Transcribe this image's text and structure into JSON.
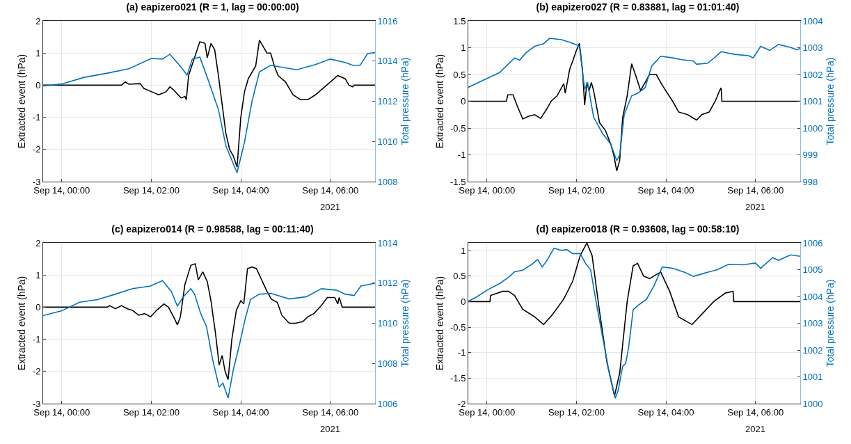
{
  "chart_data": [
    {
      "type": "line",
      "title": "(a) eapizero021 (R = 1, lag = 00:00:00)",
      "ylabel": "Extracted event (hPa)",
      "y2label": "Total pressure (hPa)",
      "grid": true,
      "annotations": [
        "2021"
      ],
      "xlim": [
        "2021-09-13T23:35",
        "2021-09-14T07:00"
      ],
      "xticks": [
        {
          "value": "2021-09-14T00:00",
          "label": "Sep 14, 00:00"
        },
        {
          "value": "2021-09-14T02:00",
          "label": "Sep 14, 02:00"
        },
        {
          "value": "2021-09-14T04:00",
          "label": "Sep 14, 04:00"
        },
        {
          "value": "2021-09-14T06:00",
          "label": "Sep 14, 06:00"
        }
      ],
      "ylim": [
        -3,
        2
      ],
      "yticks": [
        -3,
        -2,
        -1,
        0,
        1,
        2
      ],
      "y2lim": [
        1008,
        1016
      ],
      "y2ticks": [
        1008,
        1010,
        1012,
        1014,
        1016
      ],
      "series": [
        {
          "color": "#000000",
          "x": [
            "2021-09-13T23:35",
            "2021-09-14T01:20",
            "2021-09-14T01:25",
            "2021-09-14T01:30",
            "2021-09-14T01:45",
            "2021-09-14T01:50",
            "2021-09-14T02:00",
            "2021-09-14T02:10",
            "2021-09-14T02:20",
            "2021-09-14T02:25",
            "2021-09-14T02:30",
            "2021-09-14T02:40",
            "2021-09-14T02:45",
            "2021-09-14T02:47",
            "2021-09-14T02:50",
            "2021-09-14T03:00",
            "2021-09-14T03:05",
            "2021-09-14T03:12",
            "2021-09-14T03:15",
            "2021-09-14T03:20",
            "2021-09-14T03:25",
            "2021-09-14T03:30",
            "2021-09-14T03:40",
            "2021-09-14T03:45",
            "2021-09-14T03:50",
            "2021-09-14T03:55",
            "2021-09-14T04:00",
            "2021-09-14T04:05",
            "2021-09-14T04:10",
            "2021-09-14T04:20",
            "2021-09-14T04:25",
            "2021-09-14T04:30",
            "2021-09-14T04:35",
            "2021-09-14T04:40",
            "2021-09-14T04:45",
            "2021-09-14T04:50",
            "2021-09-14T05:00",
            "2021-09-14T05:10",
            "2021-09-14T05:20",
            "2021-09-14T05:30",
            "2021-09-14T05:40",
            "2021-09-14T05:50",
            "2021-09-14T06:00",
            "2021-09-14T06:10",
            "2021-09-14T06:20",
            "2021-09-14T06:25",
            "2021-09-14T06:30",
            "2021-09-14T06:32",
            "2021-09-14T07:00"
          ],
          "values": [
            0,
            0,
            0.1,
            0.03,
            0.05,
            -0.1,
            -0.2,
            -0.3,
            -0.2,
            -0.05,
            -0.15,
            -0.4,
            -0.35,
            -0.45,
            0.3,
            1.0,
            1.35,
            1.3,
            0.85,
            1.3,
            1.1,
            0.3,
            -1.5,
            -2.0,
            -2.2,
            -2.55,
            -1.0,
            -0.2,
            0.2,
            0.6,
            1.4,
            1.2,
            1.0,
            1.0,
            0.6,
            0.3,
            0.1,
            -0.3,
            -0.45,
            -0.45,
            -0.3,
            -0.1,
            0.1,
            0.3,
            0.2,
            0.0,
            -0.05,
            0,
            0
          ]
        },
        {
          "color": "#0072bd",
          "axis": "y2",
          "x": [
            "2021-09-13T23:35",
            "2021-09-14T00:00",
            "2021-09-14T00:30",
            "2021-09-14T01:00",
            "2021-09-14T01:30",
            "2021-09-14T02:00",
            "2021-09-14T02:15",
            "2021-09-14T02:25",
            "2021-09-14T02:40",
            "2021-09-14T02:48",
            "2021-09-14T02:55",
            "2021-09-14T03:05",
            "2021-09-14T03:15",
            "2021-09-14T03:30",
            "2021-09-14T03:40",
            "2021-09-14T03:55",
            "2021-09-14T04:05",
            "2021-09-14T04:15",
            "2021-09-14T04:25",
            "2021-09-14T04:40",
            "2021-09-14T05:00",
            "2021-09-14T05:15",
            "2021-09-14T05:40",
            "2021-09-14T06:00",
            "2021-09-14T06:20",
            "2021-09-14T06:30",
            "2021-09-14T06:40",
            "2021-09-14T06:50",
            "2021-09-14T07:00"
          ],
          "values": [
            1012.76,
            1012.86,
            1013.19,
            1013.39,
            1013.62,
            1014.13,
            1014.1,
            1014.34,
            1013.7,
            1013.3,
            1014.1,
            1014.2,
            1013.19,
            1011.59,
            1009.78,
            1008.44,
            1009.98,
            1011.99,
            1013.46,
            1013.79,
            1013.66,
            1013.57,
            1013.83,
            1014.1,
            1013.93,
            1013.79,
            1013.79,
            1014.37,
            1014.42
          ]
        }
      ]
    },
    {
      "type": "line",
      "title": "(b) eapizero027 (R = 0.83881, lag = 01:01:40)",
      "ylabel": "Extracted event (hPa)",
      "y2label": "Total pressure (hPa)",
      "grid": true,
      "annotations": [
        "2021"
      ],
      "xlim": [
        "2021-09-13T23:35",
        "2021-09-14T07:00"
      ],
      "xticks": [
        {
          "value": "2021-09-14T00:00",
          "label": "Sep 14, 00:00"
        },
        {
          "value": "2021-09-14T02:00",
          "label": "Sep 14, 02:00"
        },
        {
          "value": "2021-09-14T04:00",
          "label": "Sep 14, 04:00"
        },
        {
          "value": "2021-09-14T06:00",
          "label": "Sep 14, 06:00"
        }
      ],
      "ylim": [
        -1.5,
        1.5
      ],
      "yticks": [
        -1.5,
        -1,
        -0.5,
        0,
        0.5,
        1,
        1.5
      ],
      "y2lim": [
        998,
        1004
      ],
      "y2ticks": [
        998,
        999,
        1000,
        1001,
        1002,
        1003,
        1004
      ],
      "series": [
        {
          "color": "#000000",
          "x": [
            "2021-09-13T23:35",
            "2021-09-14T00:26",
            "2021-09-14T00:28",
            "2021-09-14T00:35",
            "2021-09-14T00:41",
            "2021-09-14T00:48",
            "2021-09-14T00:56",
            "2021-09-14T01:04",
            "2021-09-14T01:12",
            "2021-09-14T01:20",
            "2021-09-14T01:26",
            "2021-09-14T01:34",
            "2021-09-14T01:43",
            "2021-09-14T01:45",
            "2021-09-14T01:51",
            "2021-09-14T01:55",
            "2021-09-14T02:00",
            "2021-09-14T02:04",
            "2021-09-14T02:08",
            "2021-09-14T02:11",
            "2021-09-14T02:14",
            "2021-09-14T02:17",
            "2021-09-14T02:20",
            "2021-09-14T02:23",
            "2021-09-14T02:31",
            "2021-09-14T02:39",
            "2021-09-14T02:46",
            "2021-09-14T02:50",
            "2021-09-14T02:54",
            "2021-09-14T02:58",
            "2021-09-14T03:02",
            "2021-09-14T03:08",
            "2021-09-14T03:14",
            "2021-09-14T03:19",
            "2021-09-14T03:26",
            "2021-09-14T03:32",
            "2021-09-14T03:38",
            "2021-09-14T03:47",
            "2021-09-14T03:55",
            "2021-09-14T04:09",
            "2021-09-14T04:17",
            "2021-09-14T04:29",
            "2021-09-14T04:41",
            "2021-09-14T04:48",
            "2021-09-14T04:58",
            "2021-09-14T05:06",
            "2021-09-14T05:12",
            "2021-09-14T05:14",
            "2021-09-14T05:15",
            "2021-09-14T07:00"
          ],
          "values": [
            0,
            0,
            0.12,
            0.12,
            -0.1,
            -0.33,
            -0.28,
            -0.25,
            -0.32,
            -0.15,
            0.0,
            0.1,
            0.33,
            0.15,
            0.6,
            0.75,
            0.95,
            1.08,
            0.6,
            -0.07,
            0.35,
            0.2,
            0.35,
            0.2,
            -0.4,
            -0.55,
            -0.8,
            -1.0,
            -1.3,
            -1.1,
            -0.3,
            0.1,
            0.7,
            0.5,
            0.2,
            0.35,
            0.5,
            0.5,
            0.3,
            0.0,
            -0.2,
            -0.25,
            -0.35,
            -0.25,
            -0.2,
            0.0,
            0.2,
            0.25,
            0,
            0
          ]
        },
        {
          "color": "#0072bd",
          "axis": "y2",
          "x": [
            "2021-09-13T23:35",
            "2021-09-14T00:00",
            "2021-09-14T00:17",
            "2021-09-14T00:29",
            "2021-09-14T00:37",
            "2021-09-14T00:44",
            "2021-09-14T00:52",
            "2021-09-14T01:04",
            "2021-09-14T01:16",
            "2021-09-14T01:24",
            "2021-09-14T01:40",
            "2021-09-14T01:51",
            "2021-09-14T02:01",
            "2021-09-14T02:04",
            "2021-09-14T02:11",
            "2021-09-14T02:15",
            "2021-09-14T02:23",
            "2021-09-14T02:35",
            "2021-09-14T02:46",
            "2021-09-14T02:54",
            "2021-09-14T02:58",
            "2021-09-14T03:04",
            "2021-09-14T03:14",
            "2021-09-14T03:22",
            "2021-09-14T03:32",
            "2021-09-14T03:41",
            "2021-09-14T03:53",
            "2021-09-14T04:09",
            "2021-09-14T04:21",
            "2021-09-14T04:37",
            "2021-09-14T04:41",
            "2021-09-14T04:56",
            "2021-09-14T05:04",
            "2021-09-14T05:14",
            "2021-09-14T05:32",
            "2021-09-14T05:51",
            "2021-09-14T05:57",
            "2021-09-14T06:07",
            "2021-09-14T06:19",
            "2021-09-14T06:31",
            "2021-09-14T06:46",
            "2021-09-14T06:56",
            "2021-09-14T07:00"
          ],
          "values": [
            1001.52,
            1001.85,
            1002.07,
            1002.4,
            1002.62,
            1002.53,
            1002.8,
            1003.05,
            1003.15,
            1003.35,
            1003.3,
            1003.2,
            1003.1,
            1003.05,
            1001.45,
            1001.7,
            1000.4,
            999.8,
            999.4,
            998.78,
            999.0,
            1000.5,
            1001.2,
            1001.3,
            1001.5,
            1002.32,
            1002.68,
            1002.62,
            1002.55,
            1002.5,
            1002.38,
            1002.42,
            1002.6,
            1002.85,
            1002.75,
            1002.7,
            1002.62,
            1003.05,
            1002.9,
            1003.12,
            1003.02,
            1002.92,
            1002.98
          ]
        }
      ]
    },
    {
      "type": "line",
      "title": "(c) eapizero014 (R = 0.98588, lag = 00:11:40)",
      "ylabel": "Extracted event (hPa)",
      "y2label": "Total pressure (hPa)",
      "grid": true,
      "annotations": [
        "2021"
      ],
      "xlim": [
        "2021-09-13T23:35",
        "2021-09-14T07:00"
      ],
      "xticks": [
        {
          "value": "2021-09-14T00:00",
          "label": "Sep 14, 00:00"
        },
        {
          "value": "2021-09-14T02:00",
          "label": "Sep 14, 02:00"
        },
        {
          "value": "2021-09-14T04:00",
          "label": "Sep 14, 04:00"
        },
        {
          "value": "2021-09-14T06:00",
          "label": "Sep 14, 06:00"
        }
      ],
      "ylim": [
        -3,
        2
      ],
      "yticks": [
        -3,
        -2,
        -1,
        0,
        1,
        2
      ],
      "y2lim": [
        1006,
        1014
      ],
      "y2ticks": [
        1006,
        1008,
        1010,
        1012,
        1014
      ],
      "series": [
        {
          "color": "#000000",
          "x": [
            "2021-09-13T23:35",
            "2021-09-14T01:01",
            "2021-09-14T01:04",
            "2021-09-14T01:12",
            "2021-09-14T01:20",
            "2021-09-14T01:28",
            "2021-09-14T01:35",
            "2021-09-14T01:43",
            "2021-09-14T01:51",
            "2021-09-14T01:59",
            "2021-09-14T02:07",
            "2021-09-14T02:17",
            "2021-09-14T02:23",
            "2021-09-14T02:31",
            "2021-09-14T02:35",
            "2021-09-14T02:39",
            "2021-09-14T02:45",
            "2021-09-14T02:53",
            "2021-09-14T02:59",
            "2021-09-14T03:03",
            "2021-09-14T03:09",
            "2021-09-14T03:15",
            "2021-09-14T03:20",
            "2021-09-14T03:26",
            "2021-09-14T03:31",
            "2021-09-14T03:35",
            "2021-09-14T03:39",
            "2021-09-14T03:43",
            "2021-09-14T03:48",
            "2021-09-14T03:54",
            "2021-09-14T04:00",
            "2021-09-14T04:04",
            "2021-09-14T04:09",
            "2021-09-14T04:15",
            "2021-09-14T04:21",
            "2021-09-14T04:27",
            "2021-09-14T04:35",
            "2021-09-14T04:41",
            "2021-09-14T04:49",
            "2021-09-14T04:55",
            "2021-09-14T05:05",
            "2021-09-14T05:13",
            "2021-09-14T05:23",
            "2021-09-14T05:30",
            "2021-09-14T05:38",
            "2021-09-14T05:48",
            "2021-09-14T05:56",
            "2021-09-14T06:06",
            "2021-09-14T06:10",
            "2021-09-14T06:12",
            "2021-09-14T06:16",
            "2021-09-14T07:00"
          ],
          "values": [
            0,
            0,
            0.05,
            -0.05,
            0.05,
            -0.05,
            -0.1,
            -0.25,
            -0.2,
            -0.3,
            -0.1,
            0.1,
            0.0,
            -0.35,
            -0.55,
            -0.3,
            0.7,
            1.3,
            1.35,
            0.85,
            1.1,
            0.8,
            0.2,
            -0.8,
            -1.8,
            -1.5,
            -2.0,
            -2.25,
            -1.0,
            -0.1,
            0.2,
            0.1,
            1.2,
            1.25,
            1.2,
            0.9,
            0.5,
            0.25,
            0.15,
            -0.25,
            -0.5,
            -0.5,
            -0.45,
            -0.3,
            -0.2,
            0.05,
            0.3,
            0.3,
            0.1,
            0.3,
            0.0,
            0
          ]
        },
        {
          "color": "#0072bd",
          "axis": "y2",
          "x": [
            "2021-09-13T23:35",
            "2021-09-14T00:00",
            "2021-09-14T00:24",
            "2021-09-14T00:48",
            "2021-09-14T01:12",
            "2021-09-14T01:35",
            "2021-09-14T01:59",
            "2021-09-14T02:15",
            "2021-09-14T02:27",
            "2021-09-14T02:35",
            "2021-09-14T02:43",
            "2021-09-14T02:53",
            "2021-09-14T02:58",
            "2021-09-14T03:06",
            "2021-09-14T03:14",
            "2021-09-14T03:22",
            "2021-09-14T03:31",
            "2021-09-14T03:36",
            "2021-09-14T03:43",
            "2021-09-14T03:50",
            "2021-09-14T03:58",
            "2021-09-14T04:06",
            "2021-09-14T04:13",
            "2021-09-14T04:25",
            "2021-09-14T04:41",
            "2021-09-14T05:05",
            "2021-09-14T05:28",
            "2021-09-14T05:48",
            "2021-09-14T06:08",
            "2021-09-14T06:20",
            "2021-09-14T06:32",
            "2021-09-14T06:41",
            "2021-09-14T07:00"
          ],
          "values": [
            1010.38,
            1010.62,
            1011.05,
            1011.18,
            1011.45,
            1011.72,
            1011.85,
            1012.12,
            1011.58,
            1010.85,
            1011.32,
            1011.72,
            1011.45,
            1010.51,
            1009.84,
            1008.23,
            1006.82,
            1007.02,
            1006.28,
            1007.69,
            1008.9,
            1010.24,
            1011.18,
            1011.45,
            1011.48,
            1011.21,
            1011.32,
            1011.72,
            1011.65,
            1011.45,
            1011.38,
            1011.85,
            1011.99
          ]
        }
      ]
    },
    {
      "type": "line",
      "title": "(d) eapizero018 (R = 0.93608, lag = 00:58:10)",
      "ylabel": "Extracted event (hPa)",
      "y2label": "Total pressure (hPa)",
      "grid": true,
      "annotations": [
        "2021"
      ],
      "xlim": [
        "2021-09-13T23:35",
        "2021-09-14T07:00"
      ],
      "xticks": [
        {
          "value": "2021-09-14T00:00",
          "label": "Sep 14, 00:00"
        },
        {
          "value": "2021-09-14T02:00",
          "label": "Sep 14, 02:00"
        },
        {
          "value": "2021-09-14T04:00",
          "label": "Sep 14, 04:00"
        },
        {
          "value": "2021-09-14T06:00",
          "label": "Sep 14, 06:00"
        }
      ],
      "ylim": [
        -2,
        1.15
      ],
      "yticks": [
        -2,
        -1.5,
        -1,
        -0.5,
        0,
        0.5,
        1
      ],
      "y2lim": [
        1000,
        1006
      ],
      "y2ticks": [
        1000,
        1001,
        1002,
        1003,
        1004,
        1005,
        1006
      ],
      "series": [
        {
          "color": "#000000",
          "x": [
            "2021-09-13T23:35",
            "2021-09-14T00:04",
            "2021-09-14T00:05",
            "2021-09-14T00:21",
            "2021-09-14T00:29",
            "2021-09-14T00:37",
            "2021-09-14T00:48",
            "2021-09-14T01:04",
            "2021-09-14T01:16",
            "2021-09-14T01:28",
            "2021-09-14T01:43",
            "2021-09-14T01:55",
            "2021-09-14T02:05",
            "2021-09-14T02:14",
            "2021-09-14T02:21",
            "2021-09-14T02:31",
            "2021-09-14T02:41",
            "2021-09-14T02:51",
            "2021-09-14T02:58",
            "2021-09-14T03:08",
            "2021-09-14T03:16",
            "2021-09-14T03:22",
            "2021-09-14T03:30",
            "2021-09-14T03:38",
            "2021-09-14T03:53",
            "2021-09-14T04:05",
            "2021-09-14T04:17",
            "2021-09-14T04:35",
            "2021-09-14T04:48",
            "2021-09-14T05:04",
            "2021-09-14T05:20",
            "2021-09-14T05:30",
            "2021-09-14T05:31",
            "2021-09-14T07:00"
          ],
          "values": [
            0,
            0,
            0.12,
            0.2,
            0.2,
            0.12,
            -0.15,
            -0.3,
            -0.45,
            -0.25,
            0.05,
            0.4,
            0.9,
            1.15,
            0.9,
            -0.2,
            -1.2,
            -1.85,
            -1.4,
            0.0,
            0.7,
            0.75,
            0.5,
            0.45,
            0.58,
            0.2,
            -0.3,
            -0.45,
            -0.25,
            0.0,
            0.17,
            0.2,
            0,
            0
          ]
        },
        {
          "color": "#0072bd",
          "axis": "y2",
          "x": [
            "2021-09-13T23:35",
            "2021-09-13T23:46",
            "2021-09-14T00:01",
            "2021-09-14T00:17",
            "2021-09-14T00:29",
            "2021-09-14T00:37",
            "2021-09-14T00:48",
            "2021-09-14T01:00",
            "2021-09-14T01:08",
            "2021-09-14T01:14",
            "2021-09-14T01:20",
            "2021-09-14T01:30",
            "2021-09-14T01:40",
            "2021-09-14T01:47",
            "2021-09-14T01:55",
            "2021-09-14T02:05",
            "2021-09-14T02:13",
            "2021-09-14T02:19",
            "2021-09-14T02:27",
            "2021-09-14T02:35",
            "2021-09-14T02:43",
            "2021-09-14T02:52",
            "2021-09-14T02:56",
            "2021-09-14T03:02",
            "2021-09-14T03:06",
            "2021-09-14T03:10",
            "2021-09-14T03:16",
            "2021-09-14T03:22",
            "2021-09-14T03:34",
            "2021-09-14T03:44",
            "2021-09-14T03:55",
            "2021-09-14T04:09",
            "2021-09-14T04:25",
            "2021-09-14T04:37",
            "2021-09-14T04:53",
            "2021-09-14T05:09",
            "2021-09-14T05:24",
            "2021-09-14T05:44",
            "2021-09-14T06:00",
            "2021-09-14T06:07",
            "2021-09-14T06:23",
            "2021-09-14T06:31",
            "2021-09-14T06:47",
            "2021-09-14T07:00"
          ],
          "values": [
            1003.82,
            1003.98,
            1004.25,
            1004.48,
            1004.72,
            1004.92,
            1004.98,
            1005.2,
            1005.38,
            1005.1,
            1005.32,
            1005.8,
            1005.72,
            1005.75,
            1005.6,
            1005.6,
            1005.2,
            1005.0,
            1003.7,
            1002.5,
            1001.3,
            1000.2,
            1000.5,
            1001.4,
            1001.5,
            1002.1,
            1003.5,
            1003.65,
            1003.9,
            1004.4,
            1005.1,
            1005.05,
            1004.9,
            1004.75,
            1004.88,
            1005.0,
            1005.2,
            1005.18,
            1005.25,
            1005.05,
            1005.45,
            1005.35,
            1005.55,
            1005.5
          ]
        }
      ]
    }
  ]
}
